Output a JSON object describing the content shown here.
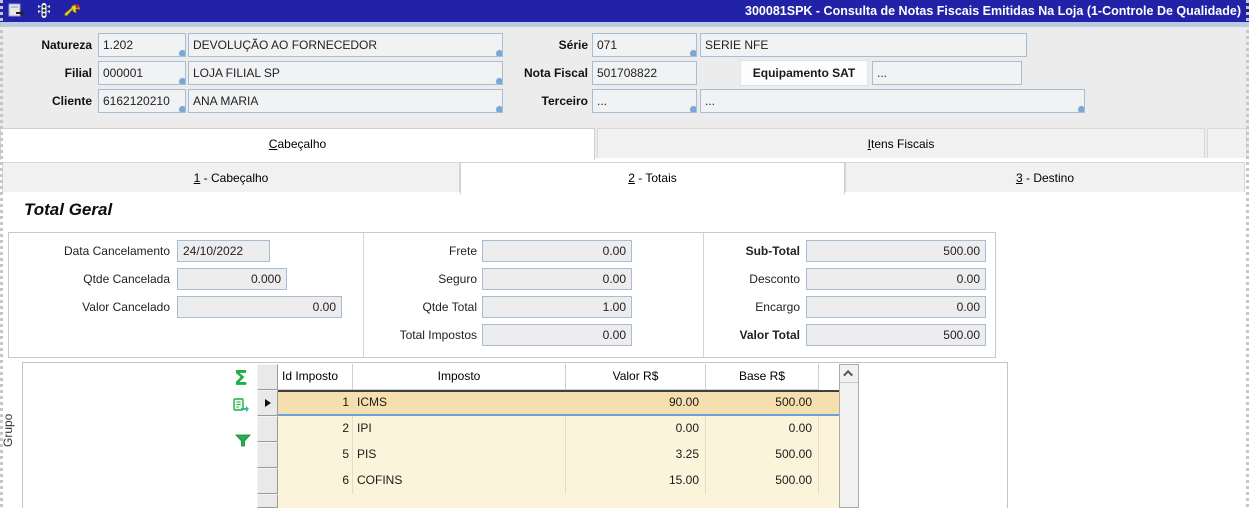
{
  "titlebar": {
    "title": "300081SPK - Consulta de Notas Fiscais Emitidas Na Loja (1-Controle De Qualidade)",
    "icons": [
      "form-icon",
      "traffic-light-icon",
      "wrench-icon"
    ]
  },
  "header_fields": {
    "natureza": {
      "label": "Natureza",
      "code": "1.202",
      "desc": "DEVOLUÇÃO AO FORNECEDOR"
    },
    "filial": {
      "label": "Filial",
      "code": "000001",
      "desc": "LOJA FILIAL SP"
    },
    "cliente": {
      "label": "Cliente",
      "code": "6162120210",
      "desc": "ANA MARIA"
    },
    "serie": {
      "label": "Série",
      "code": "071",
      "desc": "SERIE NFE"
    },
    "nota_fiscal": {
      "label": "Nota Fiscal",
      "code": "501708822"
    },
    "equipamento_sat": {
      "label": "Equipamento SAT",
      "value": "..."
    },
    "terceiro": {
      "label": "Terceiro",
      "code": "...",
      "desc": "..."
    }
  },
  "folder_tabs": [
    {
      "label": "Cabeçalho",
      "active": true
    },
    {
      "label": "Itens Fiscais",
      "active": false
    }
  ],
  "sub_tabs": [
    {
      "label": "1 - Cabeçalho",
      "active": false
    },
    {
      "label": "2 - Totais",
      "active": true
    },
    {
      "label": "3 - Destino",
      "active": false
    }
  ],
  "totals": {
    "section_title": "Total Geral",
    "left": [
      {
        "label": "Data Cancelamento",
        "value": "24/10/2022"
      },
      {
        "label": "Qtde Cancelada",
        "value": "0.000"
      },
      {
        "label": "Valor Cancelado",
        "value": "0.00"
      }
    ],
    "middle": [
      {
        "label": "Frete",
        "value": "0.00"
      },
      {
        "label": "Seguro",
        "value": "0.00"
      },
      {
        "label": "Qtde Total",
        "value": "1.00"
      },
      {
        "label": "Total Impostos",
        "value": "0.00"
      }
    ],
    "right": [
      {
        "label": "Sub-Total",
        "value": "500.00",
        "bold": true
      },
      {
        "label": "Desconto",
        "value": "0.00"
      },
      {
        "label": "Encargo",
        "value": "0.00"
      },
      {
        "label": "Valor Total",
        "value": "500.00",
        "bold": true
      }
    ]
  },
  "grid": {
    "group_label": "Grupo",
    "toolbar_icons": [
      "sum-icon",
      "copy-record-icon",
      "filter-icon"
    ],
    "columns": [
      "Id Imposto",
      "Imposto",
      "Valor R$",
      "Base R$"
    ],
    "rows": [
      {
        "id": "1",
        "imposto": "ICMS",
        "valor": "90.00",
        "base": "500.00",
        "selected": true
      },
      {
        "id": "2",
        "imposto": "IPI",
        "valor": "0.00",
        "base": "0.00",
        "selected": false
      },
      {
        "id": "5",
        "imposto": "PIS",
        "valor": "3.25",
        "base": "500.00",
        "selected": false
      },
      {
        "id": "6",
        "imposto": "COFINS",
        "valor": "15.00",
        "base": "500.00",
        "selected": false
      }
    ]
  },
  "colors": {
    "titlebar": "#2122a8",
    "accent_blue": "#a7bdd4",
    "row_cream": "#fcf4da",
    "row_selected": "#f6dfaf",
    "icon_green": "#1fae48"
  }
}
